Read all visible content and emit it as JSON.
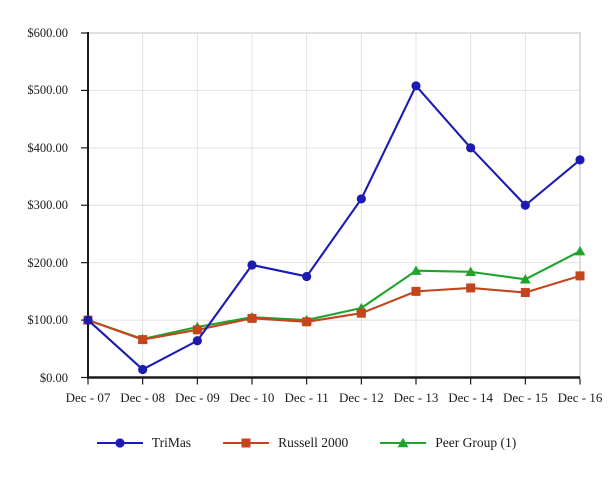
{
  "chart_data": {
    "type": "line",
    "title": "",
    "xlabel": "",
    "ylabel": "",
    "categories": [
      "Dec - 07",
      "Dec - 08",
      "Dec - 09",
      "Dec - 10",
      "Dec - 11",
      "Dec - 12",
      "Dec - 13",
      "Dec - 14",
      "Dec - 15",
      "Dec - 16"
    ],
    "series": [
      {
        "name": "TriMas",
        "color": "#1b1bb3",
        "marker": "circle",
        "values": [
          100,
          14,
          64,
          196,
          176,
          311,
          508,
          400,
          300,
          379
        ]
      },
      {
        "name": "Russell 2000",
        "color": "#c2451c",
        "marker": "square",
        "values": [
          100,
          66,
          83,
          103,
          97,
          112,
          150,
          156,
          148,
          177
        ]
      },
      {
        "name": "Peer Group (1)",
        "color": "#1fa32b",
        "marker": "triangle",
        "values": [
          100,
          67,
          88,
          105,
          100,
          121,
          186,
          184,
          171,
          220
        ]
      }
    ],
    "ylim": [
      0,
      600
    ],
    "ytick_step": 100,
    "ytick_labels": [
      "$0.00",
      "$100.00",
      "$200.00",
      "$300.00",
      "$400.00",
      "$500.00",
      "$600.00"
    ],
    "grid": true,
    "legend_position": "bottom",
    "axis_color": "#1a1a1a",
    "gridline_color": "#e2e2e2",
    "frame_color": "#d6d6d6"
  }
}
